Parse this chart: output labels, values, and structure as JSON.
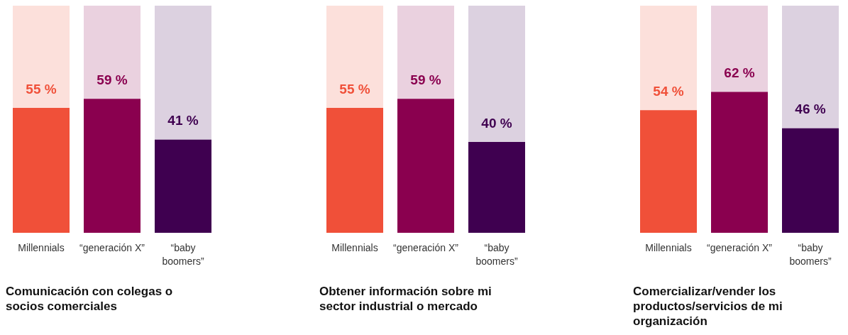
{
  "chart_data": [
    {
      "type": "bar",
      "title": "Comunicación con colegas o socios comerciales",
      "categories": [
        "Millennials",
        "“generación X”",
        "“baby boomers”"
      ],
      "values": [
        55,
        59,
        41
      ],
      "colors": [
        "#f05039",
        "#8a004f",
        "#3f0050"
      ],
      "value_labels": [
        "55 %",
        "59 %",
        "41 %"
      ],
      "ylim": [
        0,
        100
      ],
      "tick_labels": "x"
    },
    {
      "type": "bar",
      "title": "Obtener información sobre mi sector industrial o mercado",
      "categories": [
        "Millennials",
        "“generación X”",
        "“baby boomers”"
      ],
      "values": [
        55,
        59,
        40
      ],
      "colors": [
        "#f05039",
        "#8a004f",
        "#3f0050"
      ],
      "value_labels": [
        "55 %",
        "59 %",
        "40 %"
      ],
      "ylim": [
        0,
        100
      ],
      "tick_labels": "x"
    },
    {
      "type": "bar",
      "title": "Comercializar/vender los productos/servicios de mi organización",
      "categories": [
        "Millennials",
        "“generación X”",
        "“baby boomers”"
      ],
      "values": [
        54,
        62,
        46
      ],
      "colors": [
        "#f05039",
        "#8a004f",
        "#3f0050"
      ],
      "value_labels": [
        "54 %",
        "62 %",
        "46 %"
      ],
      "ylim": [
        0,
        100
      ],
      "tick_labels": "x"
    }
  ]
}
